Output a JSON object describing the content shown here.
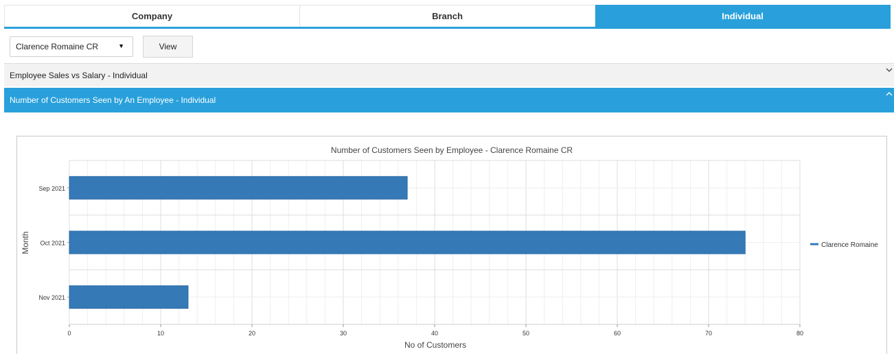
{
  "tabs": [
    {
      "label": "Company",
      "active": false
    },
    {
      "label": "Branch",
      "active": false
    },
    {
      "label": "Individual",
      "active": true
    }
  ],
  "controls": {
    "employee_select_value": "Clarence Romaine CR",
    "view_label": "View"
  },
  "accordion": [
    {
      "label": "Employee Sales vs Salary - Individual",
      "expanded": false,
      "chevron_icon": "chevron-down-icon"
    },
    {
      "label": "Number of Customers Seen by An Employee - Individual",
      "expanded": true,
      "chevron_icon": "chevron-up-icon"
    }
  ],
  "colors": {
    "accent": "#29a0db",
    "bar": "#3579b6",
    "grid_major": "#dddddd",
    "grid_minor": "#eeeeee"
  },
  "chart_data": {
    "type": "bar",
    "orientation": "horizontal",
    "title": "Number of Customers Seen by Employee - Clarence Romaine CR",
    "xlabel": "No of Customers",
    "ylabel": "Month",
    "categories": [
      "Sep 2021",
      "Oct 2021",
      "Nov 2021"
    ],
    "series": [
      {
        "name": "Clarence Romaine",
        "values": [
          37,
          74,
          13
        ]
      }
    ],
    "xlim": [
      0,
      80
    ],
    "xticks": [
      0,
      10,
      20,
      30,
      40,
      50,
      60,
      70,
      80
    ],
    "grid": true,
    "legend": "right"
  }
}
